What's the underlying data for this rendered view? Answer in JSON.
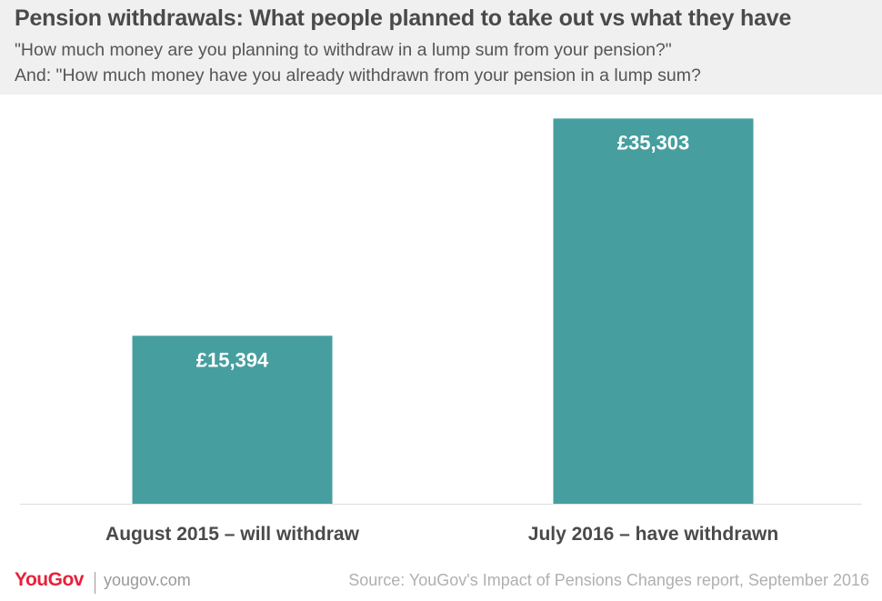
{
  "header": {
    "title": "Pension withdrawals: What people planned to take out vs what they have",
    "subtitle_line1": "\"How much money are you planning to withdraw in a lump sum from your pension?\"",
    "subtitle_line2": "And: \"How much money have you already withdrawn from your pension in a lump sum?"
  },
  "chart_data": {
    "type": "bar",
    "categories": [
      "August 2015 – will withdraw",
      "July 2016 – have withdrawn"
    ],
    "values": [
      15394,
      35303
    ],
    "data_labels": [
      "£15,394",
      "£35,303"
    ],
    "title": "Pension withdrawals: What people planned to take out vs what they have",
    "xlabel": "",
    "ylabel": "",
    "ylim": [
      0,
      37000
    ],
    "grid": false,
    "legend": "none",
    "bar_color": "#469e9f",
    "label_color": "#ffffff"
  },
  "footer": {
    "logo": "YouGov",
    "site": "yougov.com",
    "source": "Source: YouGov's Impact of Pensions Changes report, September 2016"
  },
  "colors": {
    "header_bg": "#f0f0f0",
    "title": "#4a4a4a",
    "bar": "#469e9f",
    "brand": "#e8203a",
    "axis": "#dddddd"
  }
}
